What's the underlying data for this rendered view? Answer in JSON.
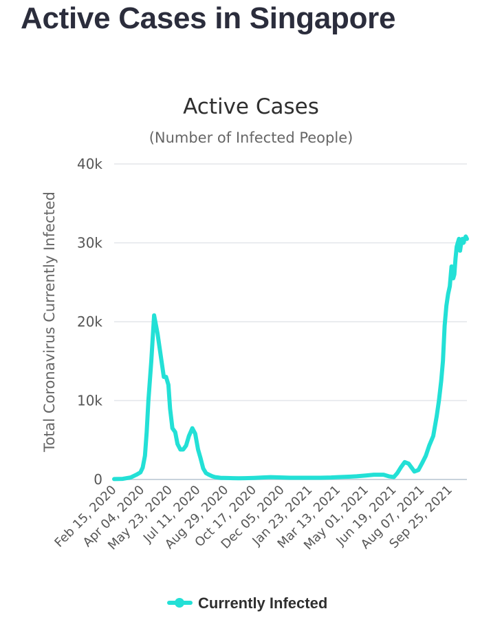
{
  "page": {
    "title": "Active Cases in Singapore"
  },
  "chart_data": {
    "type": "line",
    "title": "Active Cases",
    "subtitle": "(Number of Infected People)",
    "xlabel": "",
    "ylabel": "Total Coronavirus Currently Infected",
    "ylim": [
      0,
      40000
    ],
    "y_ticks": [
      0,
      10000,
      20000,
      30000,
      40000
    ],
    "y_tick_labels": [
      "0",
      "10k",
      "20k",
      "30k",
      "40k"
    ],
    "x_tick_labels": [
      "Feb 15, 2020",
      "Apr 04, 2020",
      "May 23, 2020",
      "Jul 11, 2020",
      "Aug 29, 2020",
      "Oct 17, 2020",
      "Dec 05, 2020",
      "Jan 23, 2021",
      "Mar 13, 2021",
      "May 01, 2021",
      "Jun 19, 2021",
      "Aug 07, 2021",
      "Sep 25, 2021"
    ],
    "grid": true,
    "legend": "bottom",
    "colors": {
      "line": "#23e0d6",
      "grid": "#e3e6ea",
      "axis": "#c8d3dc"
    },
    "series": [
      {
        "name": "Currently Infected",
        "x": [
          "2020-02-15",
          "2020-03-01",
          "2020-03-15",
          "2020-03-25",
          "2020-04-01",
          "2020-04-05",
          "2020-04-09",
          "2020-04-12",
          "2020-04-15",
          "2020-04-20",
          "2020-04-25",
          "2020-05-01",
          "2020-05-05",
          "2020-05-08",
          "2020-05-12",
          "2020-05-16",
          "2020-05-20",
          "2020-05-23",
          "2020-05-27",
          "2020-06-01",
          "2020-06-05",
          "2020-06-10",
          "2020-06-15",
          "2020-06-20",
          "2020-06-25",
          "2020-07-01",
          "2020-07-06",
          "2020-07-11",
          "2020-07-15",
          "2020-07-20",
          "2020-07-25",
          "2020-07-30",
          "2020-08-05",
          "2020-08-10",
          "2020-08-15",
          "2020-08-20",
          "2020-08-25",
          "2020-09-01",
          "2020-09-10",
          "2020-09-20",
          "2020-10-01",
          "2020-10-17",
          "2020-11-01",
          "2020-11-15",
          "2020-12-05",
          "2020-12-20",
          "2021-01-05",
          "2021-01-23",
          "2021-02-10",
          "2021-03-01",
          "2021-03-13",
          "2021-04-01",
          "2021-04-15",
          "2021-05-01",
          "2021-05-15",
          "2021-06-01",
          "2021-06-10",
          "2021-06-19",
          "2021-06-25",
          "2021-07-01",
          "2021-07-08",
          "2021-07-15",
          "2021-07-20",
          "2021-07-25",
          "2021-08-01",
          "2021-08-07",
          "2021-08-14",
          "2021-08-20",
          "2021-08-27",
          "2021-09-02",
          "2021-09-06",
          "2021-09-10",
          "2021-09-13",
          "2021-09-16",
          "2021-09-19",
          "2021-09-22",
          "2021-09-25",
          "2021-09-28",
          "2021-10-01",
          "2021-10-03",
          "2021-10-05",
          "2021-10-07",
          "2021-10-09",
          "2021-10-11",
          "2021-10-13",
          "2021-10-15",
          "2021-10-17",
          "2021-10-19",
          "2021-10-21",
          "2021-10-23",
          "2021-10-25"
        ],
        "values": [
          50,
          80,
          250,
          600,
          900,
          1500,
          3000,
          6000,
          10000,
          15000,
          20800,
          18500,
          16500,
          15000,
          13000,
          13000,
          12000,
          9000,
          6500,
          6000,
          4500,
          3800,
          3800,
          4300,
          5500,
          6500,
          5800,
          3800,
          2800,
          1400,
          800,
          600,
          400,
          300,
          250,
          200,
          200,
          180,
          170,
          160,
          170,
          200,
          250,
          300,
          250,
          220,
          220,
          220,
          220,
          250,
          300,
          350,
          400,
          500,
          600,
          600,
          400,
          300,
          800,
          1500,
          2200,
          2000,
          1500,
          1000,
          1200,
          2000,
          3000,
          4300,
          5500,
          8000,
          10000,
          12500,
          15000,
          19500,
          22000,
          23500,
          24500,
          27000,
          25500,
          26000,
          28000,
          29500,
          30000,
          30500,
          29000,
          30000,
          30500,
          30000,
          30500,
          30800,
          30500
        ]
      }
    ]
  }
}
